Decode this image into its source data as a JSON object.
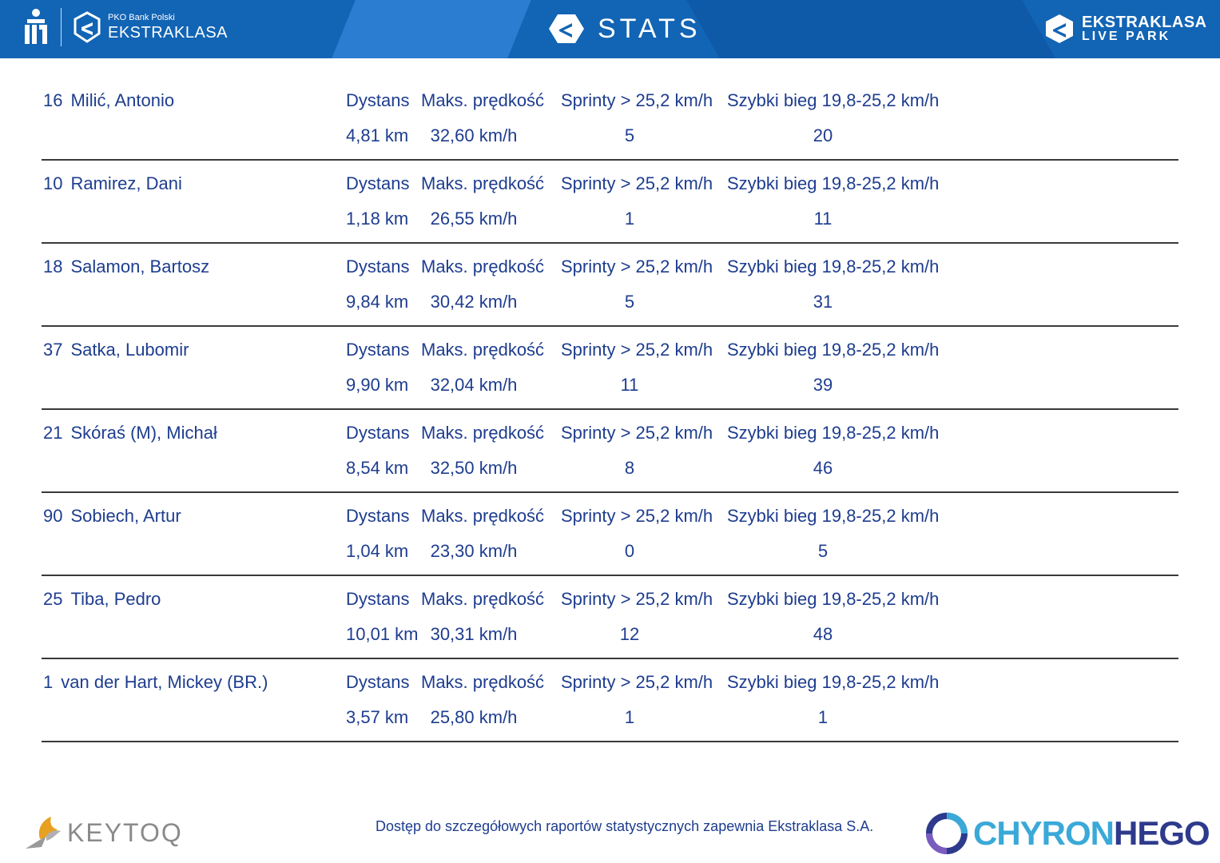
{
  "header": {
    "pko_small": "PKO Bank Polski",
    "ekstraklasa": "EKSTRAKLASA",
    "stats_title": "STATS",
    "live_line1": "EKSTRAKLASA",
    "live_line2": "LIVE PARK"
  },
  "colors": {
    "header_bg": "#1264b4",
    "text": "#1e3d8f",
    "divider": "#3a3a3a"
  },
  "players": [
    {
      "number": "16",
      "name": "Milić, Antonio",
      "h_distance": "Dystans",
      "h_maxspeed": "Maks. prędkość",
      "h_sprints": "Sprinty > 25,2 km/h",
      "h_fastrun": "Szybki bieg 19,8-25,2 km/h",
      "distance": "4,81 km",
      "max_speed": "32,60 km/h",
      "sprints": "5",
      "fast_runs": "20"
    },
    {
      "number": "10",
      "name": "Ramirez, Dani",
      "h_distance": "Dystans",
      "h_maxspeed": "Maks. prędkość",
      "h_sprints": "Sprinty > 25,2 km/h",
      "h_fastrun": "Szybki bieg 19,8-25,2 km/h",
      "distance": "1,18 km",
      "max_speed": "26,55 km/h",
      "sprints": "1",
      "fast_runs": "11"
    },
    {
      "number": "18",
      "name": "Salamon, Bartosz",
      "h_distance": "Dystans",
      "h_maxspeed": "Maks. prędkość",
      "h_sprints": "Sprinty > 25,2 km/h",
      "h_fastrun": "Szybki bieg 19,8-25,2 km/h",
      "distance": "9,84 km",
      "max_speed": "30,42 km/h",
      "sprints": "5",
      "fast_runs": "31"
    },
    {
      "number": "37",
      "name": "Satka, Lubomir",
      "h_distance": "Dystans",
      "h_maxspeed": "Maks. prędkość",
      "h_sprints": "Sprinty > 25,2 km/h",
      "h_fastrun": "Szybki bieg 19,8-25,2 km/h",
      "distance": "9,90 km",
      "max_speed": "32,04 km/h",
      "sprints": "11",
      "fast_runs": "39"
    },
    {
      "number": "21",
      "name": "Skóraś (M), Michał",
      "h_distance": "Dystans",
      "h_maxspeed": "Maks. prędkość",
      "h_sprints": "Sprinty > 25,2 km/h",
      "h_fastrun": "Szybki bieg 19,8-25,2 km/h",
      "distance": "8,54 km",
      "max_speed": "32,50 km/h",
      "sprints": "8",
      "fast_runs": "46"
    },
    {
      "number": "90",
      "name": "Sobiech, Artur",
      "h_distance": "Dystans",
      "h_maxspeed": "Maks. prędkość",
      "h_sprints": "Sprinty > 25,2 km/h",
      "h_fastrun": "Szybki bieg 19,8-25,2 km/h",
      "distance": "1,04 km",
      "max_speed": "23,30 km/h",
      "sprints": "0",
      "fast_runs": "5"
    },
    {
      "number": "25",
      "name": "Tiba, Pedro",
      "h_distance": "Dystans",
      "h_maxspeed": "Maks. prędkość",
      "h_sprints": "Sprinty > 25,2 km/h",
      "h_fastrun": "Szybki bieg 19,8-25,2 km/h",
      "distance": "10,01 km",
      "max_speed": "30,31 km/h",
      "sprints": "12",
      "fast_runs": "48"
    },
    {
      "number": "1",
      "name": "van der Hart, Mickey (BR.)",
      "h_distance": "Dystans",
      "h_maxspeed": "Maks. prędkość",
      "h_sprints": "Sprinty > 25,2 km/h",
      "h_fastrun": "Szybki bieg 19,8-25,2 km/h",
      "distance": "3,57 km",
      "max_speed": "25,80 km/h",
      "sprints": "1",
      "fast_runs": "1"
    }
  ],
  "footer": {
    "note": "Dostęp do szczegółowych raportów statystycznych zapewnia Ekstraklasa S.A.",
    "keytoq": "KEYTOQ",
    "chyron_part1": "CHYRON",
    "chyron_part2": "HEGO"
  }
}
